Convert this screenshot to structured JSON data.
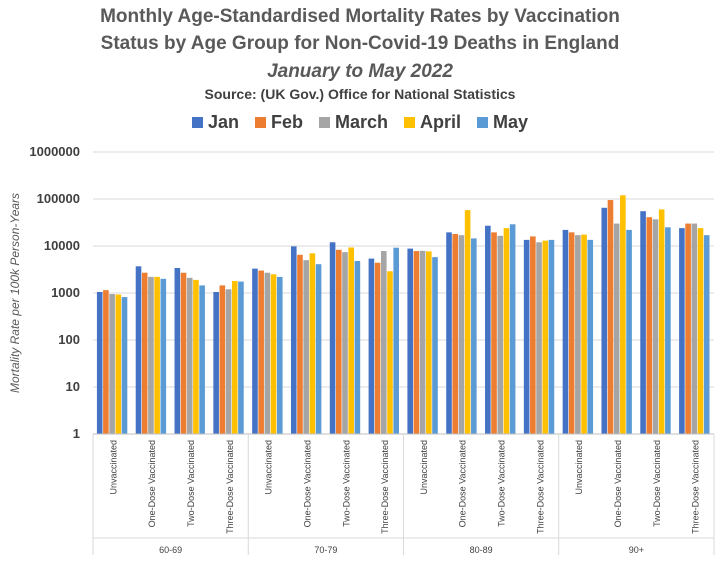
{
  "title_line1": "Monthly Age-Standardised Mortality Rates by Vaccination",
  "title_line2": "Status by Age Group for Non-Covid-19 Deaths in England",
  "subtitle": "January to May 2022",
  "source": "Source: (UK Gov.) Office for National Statistics",
  "chart_data": {
    "type": "bar",
    "title": "Monthly Age-Standardised Mortality Rates by Vaccination Status by Age Group for Non-Covid-19 Deaths in England",
    "subtitle": "January to May 2022",
    "ylabel": "Mortality Rate per 100k Person-Years",
    "yscale": "log",
    "ylim": [
      1,
      1000000
    ],
    "yticks": [
      "1",
      "10",
      "100",
      "1000",
      "10000",
      "100000",
      "1000000"
    ],
    "legend_position": "top",
    "grid": true,
    "groups": [
      {
        "label": "60-69",
        "categories": [
          "Unvaccinated",
          "One-Dose Vaccinated",
          "Two-Dose Vaccinated",
          "Three-Dose Vaccinated"
        ]
      },
      {
        "label": "70-79",
        "categories": [
          "Unvaccinated",
          "One-Dose Vaccinated",
          "Two-Dose Vaccinated",
          "Three-Dose Vaccinated"
        ]
      },
      {
        "label": "80-89",
        "categories": [
          "Unvaccinated",
          "One-Dose Vaccinated",
          "Two-Dose Vaccinated",
          "Three-Dose Vaccinated"
        ]
      },
      {
        "label": "90+",
        "categories": [
          "Unvaccinated",
          "One-Dose Vaccinated",
          "Two-Dose Vaccinated",
          "Three-Dose Vaccinated"
        ]
      }
    ],
    "series": [
      {
        "name": "Jan",
        "color": "#4472c4",
        "values": [
          1050,
          3700,
          3400,
          1050,
          3300,
          9800,
          12000,
          5400,
          8800,
          19500,
          27000,
          13500,
          22000,
          65000,
          55000,
          24000
        ]
      },
      {
        "name": "Feb",
        "color": "#ed7d31",
        "values": [
          1150,
          2700,
          2700,
          1450,
          3000,
          6500,
          8300,
          4400,
          7800,
          18000,
          19500,
          16000,
          19500,
          95000,
          41000,
          30000
        ]
      },
      {
        "name": "March",
        "color": "#a5a5a5",
        "values": [
          950,
          2200,
          2100,
          1200,
          2700,
          5000,
          7400,
          7800,
          7900,
          17000,
          16500,
          12000,
          17000,
          30000,
          37000,
          30000
        ]
      },
      {
        "name": "April",
        "color": "#ffc000",
        "values": [
          930,
          2200,
          1900,
          1800,
          2500,
          7000,
          9300,
          2900,
          7700,
          58000,
          24000,
          13000,
          17500,
          120000,
          60000,
          24000
        ]
      },
      {
        "name": "May",
        "color": "#5b9bd5",
        "values": [
          820,
          2000,
          1450,
          1750,
          2200,
          4100,
          4800,
          9200,
          5800,
          14500,
          29000,
          13500,
          13500,
          22000,
          25000,
          17000
        ]
      }
    ]
  }
}
